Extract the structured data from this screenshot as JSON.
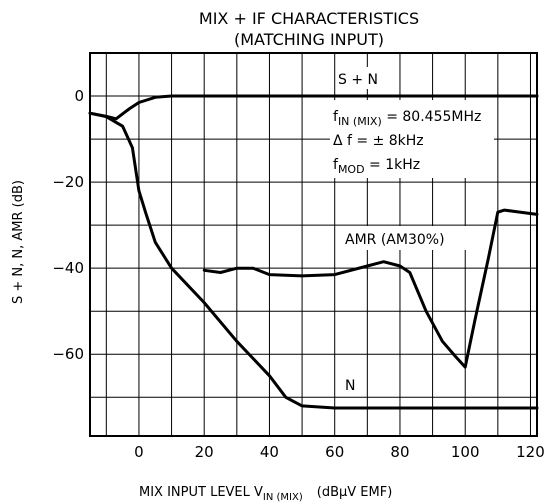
{
  "chart_data": {
    "type": "line",
    "title": "MIX + IF CHARACTERISTICS",
    "subtitle": "(MATCHING INPUT)",
    "xlabel_parts": {
      "main": "MIX INPUT LEVEL   V",
      "sub": "IN (MIX)",
      "unit": "(dBμV EMF)"
    },
    "ylabel": "S + N, N, AMR   (dB)",
    "xlim": [
      -15,
      122
    ],
    "ylim": [
      -79,
      10
    ],
    "x_ticks": [
      0,
      20,
      40,
      60,
      80,
      100,
      120
    ],
    "y_ticks": [
      0,
      -20,
      -40,
      -60
    ],
    "grid": true,
    "annotations": {
      "fin": {
        "main": "f",
        "sub": "IN (MIX)",
        "rest": " = 80.455MHz"
      },
      "df": "Δ f = ± 8kHz",
      "fmod": {
        "main": "f",
        "sub": "MOD",
        "rest": " = 1kHz"
      }
    },
    "series": [
      {
        "name": "S + N",
        "points": [
          [
            -15,
            -4
          ],
          [
            -10,
            -4.7
          ],
          [
            -7,
            -5.3
          ],
          [
            -3,
            -3
          ],
          [
            0,
            -1.5
          ],
          [
            5,
            -0.3
          ],
          [
            10,
            0
          ],
          [
            122,
            0
          ]
        ]
      },
      {
        "name": "N",
        "points": [
          [
            -15,
            -4
          ],
          [
            -10,
            -4.8
          ],
          [
            -5,
            -7
          ],
          [
            -2,
            -12
          ],
          [
            0,
            -22
          ],
          [
            2,
            -27
          ],
          [
            5,
            -34
          ],
          [
            10,
            -40
          ],
          [
            20,
            -48
          ],
          [
            30,
            -57
          ],
          [
            40,
            -65
          ],
          [
            45,
            -70
          ],
          [
            50,
            -72
          ],
          [
            60,
            -72.5
          ],
          [
            80,
            -72.5
          ],
          [
            100,
            -72.5
          ],
          [
            122,
            -72.5
          ]
        ]
      },
      {
        "name": "AMR (AM30%)",
        "points": [
          [
            20,
            -40.5
          ],
          [
            25,
            -41
          ],
          [
            30,
            -40
          ],
          [
            35,
            -40
          ],
          [
            40,
            -41.5
          ],
          [
            50,
            -41.8
          ],
          [
            60,
            -41.5
          ],
          [
            70,
            -39.5
          ],
          [
            75,
            -38.5
          ],
          [
            80,
            -39.5
          ],
          [
            83,
            -41
          ],
          [
            88,
            -50
          ],
          [
            93,
            -57
          ],
          [
            97,
            -60.5
          ],
          [
            100,
            -63
          ],
          [
            103,
            -52
          ],
          [
            107,
            -38
          ],
          [
            110,
            -27
          ],
          [
            112,
            -26.5
          ],
          [
            117,
            -27
          ],
          [
            122,
            -27.5
          ]
        ]
      }
    ]
  }
}
